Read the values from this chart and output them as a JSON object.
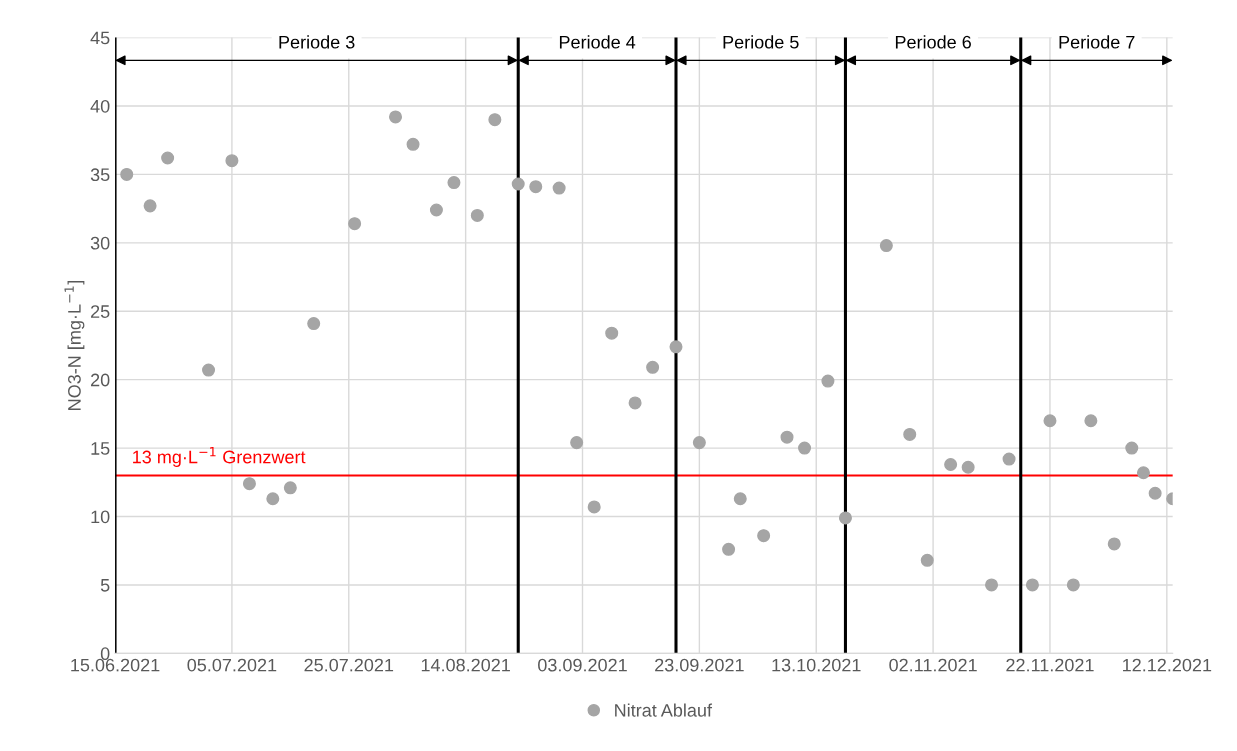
{
  "chart_data": {
    "type": "scatter",
    "ylabel": "NO3-N [mg·L$^{−1}$]",
    "x": [
      "2021-06-17",
      "2021-06-21",
      "2021-06-24",
      "2021-07-01",
      "2021-07-05",
      "2021-07-08",
      "2021-07-12",
      "2021-07-15",
      "2021-07-19",
      "2021-07-26",
      "2021-08-02",
      "2021-08-05",
      "2021-08-09",
      "2021-08-12",
      "2021-08-16",
      "2021-08-19",
      "2021-08-23",
      "2021-08-26",
      "2021-08-30",
      "2021-09-02",
      "2021-09-05",
      "2021-09-08",
      "2021-09-12",
      "2021-09-15",
      "2021-09-19",
      "2021-09-23",
      "2021-09-28",
      "2021-09-30",
      "2021-10-04",
      "2021-10-08",
      "2021-10-11",
      "2021-10-15",
      "2021-10-18",
      "2021-10-25",
      "2021-10-29",
      "2021-11-01",
      "2021-11-05",
      "2021-11-08",
      "2021-11-12",
      "2021-11-15",
      "2021-11-19",
      "2021-11-22",
      "2021-11-26",
      "2021-11-29",
      "2021-12-03",
      "2021-12-06",
      "2021-12-08",
      "2021-12-10",
      "2021-12-13"
    ],
    "series": [
      {
        "name": "Nitrat Ablauf",
        "color": "#a5a5a5",
        "values": [
          35.0,
          32.7,
          36.2,
          20.7,
          36.0,
          12.4,
          11.3,
          12.1,
          24.1,
          31.4,
          39.2,
          37.2,
          32.4,
          34.4,
          32.0,
          39.0,
          34.3,
          34.1,
          34.0,
          15.4,
          10.7,
          23.4,
          18.3,
          20.9,
          22.4,
          15.4,
          7.6,
          11.3,
          8.6,
          15.8,
          15.0,
          19.9,
          9.9,
          29.8,
          16.0,
          6.8,
          13.8,
          13.6,
          5.0,
          14.2,
          5.0,
          17.0,
          5.0,
          17.0,
          8.0,
          15.0,
          13.2,
          11.7,
          11.3
        ]
      }
    ],
    "xlim": [
      "2021-06-15",
      "2021-12-13"
    ],
    "xticks": [
      {
        "value": "2021-06-15",
        "label": "15.06.2021"
      },
      {
        "value": "2021-07-05",
        "label": "05.07.2021"
      },
      {
        "value": "2021-07-25",
        "label": "25.07.2021"
      },
      {
        "value": "2021-08-14",
        "label": "14.08.2021"
      },
      {
        "value": "2021-09-03",
        "label": "03.09.2021"
      },
      {
        "value": "2021-09-23",
        "label": "23.09.2021"
      },
      {
        "value": "2021-10-13",
        "label": "13.10.2021"
      },
      {
        "value": "2021-11-02",
        "label": "02.11.2021"
      },
      {
        "value": "2021-11-22",
        "label": "22.11.2021"
      },
      {
        "value": "2021-12-12",
        "label": "12.12.2021"
      }
    ],
    "ylim": [
      0,
      45
    ],
    "yticks": [
      0,
      5,
      10,
      15,
      20,
      25,
      30,
      35,
      40,
      45
    ],
    "ref_lines": [
      {
        "axis": "y",
        "value": 13,
        "label": "13 mg·L$^{−1}$ Grenzwert",
        "color": "#ff0000"
      },
      {
        "axis": "x",
        "value": "2021-06-15",
        "color": "#000000"
      },
      {
        "axis": "x",
        "value": "2021-08-23",
        "color": "#000000"
      },
      {
        "axis": "x",
        "value": "2021-09-19",
        "color": "#000000"
      },
      {
        "axis": "x",
        "value": "2021-10-18",
        "color": "#000000"
      },
      {
        "axis": "x",
        "value": "2021-11-17",
        "color": "#000000"
      }
    ],
    "annotations": [
      "Periode 3",
      "Periode 4",
      "Periode 5",
      "Periode 6",
      "Periode 7"
    ],
    "grid": true,
    "legend": "bottom",
    "marker": "circle"
  }
}
